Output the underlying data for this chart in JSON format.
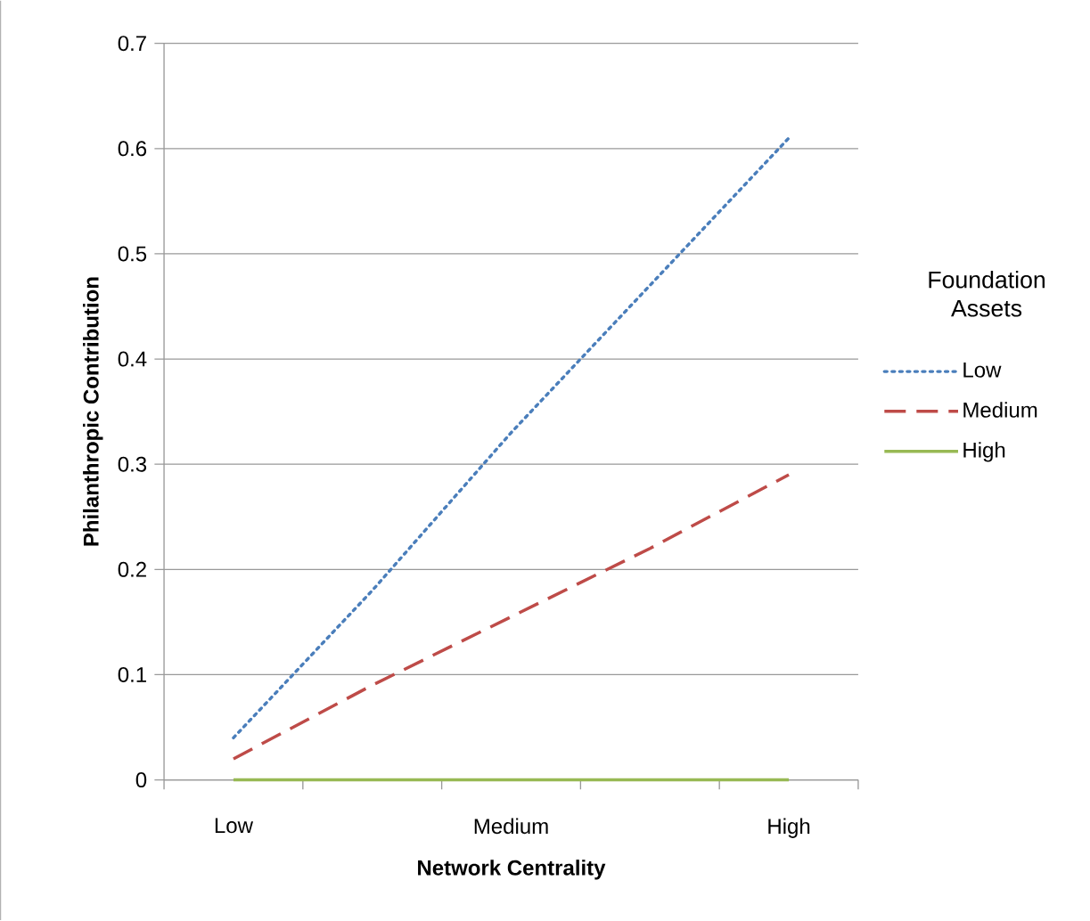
{
  "chart_data": {
    "type": "line",
    "xlabel": "Network Centrality",
    "ylabel": "Philanthropic Contribution",
    "legend_title": "Foundation Assets",
    "categories": [
      "Low",
      null,
      "Medium",
      null,
      "High"
    ],
    "series": [
      {
        "name": "Low",
        "color": "#4a7ebb",
        "line_style": "dotted",
        "values": [
          0.04,
          0.18,
          0.33,
          0.47,
          0.61
        ]
      },
      {
        "name": "Medium",
        "color": "#be4b48",
        "line_style": "dashed",
        "values": [
          0.02,
          0.09,
          0.155,
          0.22,
          0.29
        ]
      },
      {
        "name": "High",
        "color": "#98b954",
        "line_style": "solid",
        "values": [
          0,
          0,
          0,
          0,
          0
        ]
      }
    ],
    "ylim": [
      0,
      0.7
    ],
    "yticks": [
      0,
      0.1,
      0.2,
      0.3,
      0.4,
      0.5,
      0.6,
      0.7
    ],
    "grid": "y",
    "legend": "right",
    "marker": "none"
  }
}
